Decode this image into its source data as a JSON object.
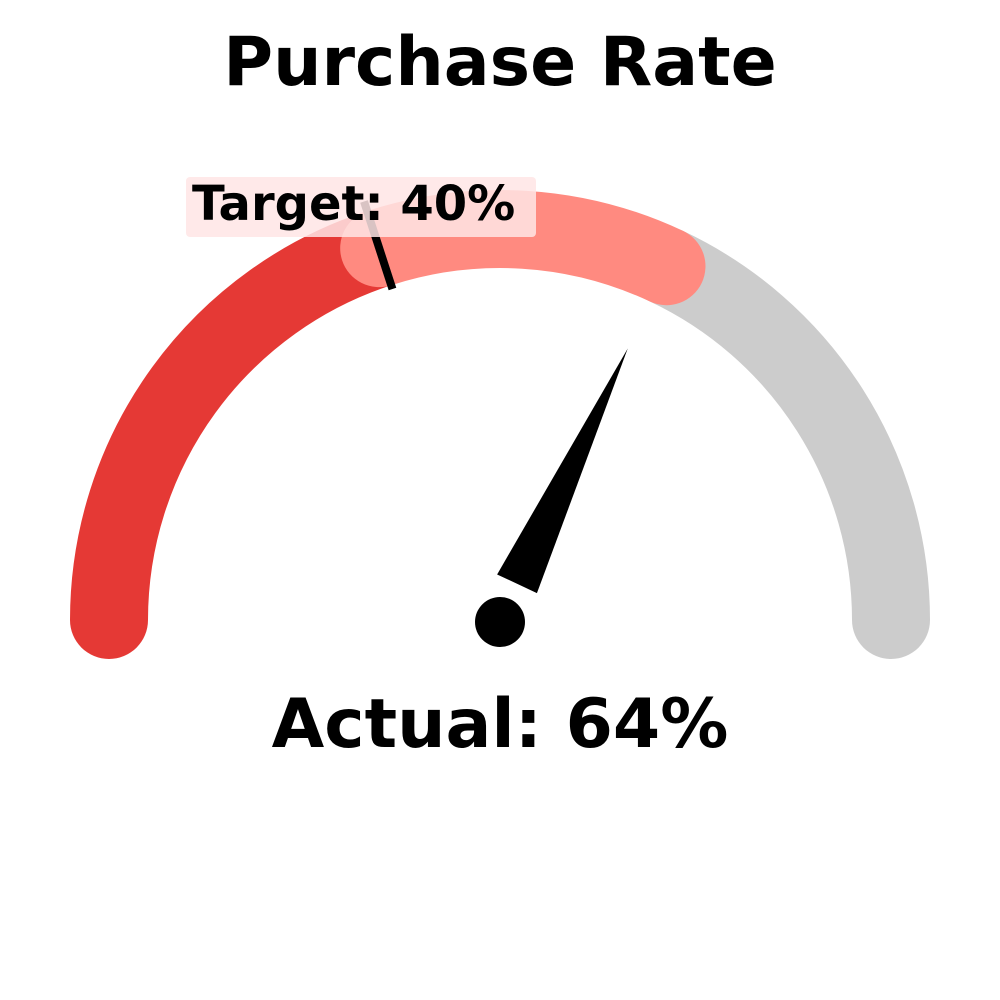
{
  "chart_data": {
    "type": "gauge",
    "title": "Purchase Rate",
    "min": 0,
    "max": 100,
    "value": 64,
    "target": 40,
    "target_label": "Target: 40%",
    "value_label": "Actual: 64%",
    "bands": [
      {
        "from": 0,
        "to": 40,
        "color": "#e53935"
      },
      {
        "from": 40,
        "to": 64,
        "color": "#ff8a80"
      },
      {
        "from": 64,
        "to": 100,
        "color": "#cccccc"
      }
    ],
    "colors": {
      "needle": "#000000",
      "target_marker": "#000000",
      "target_label_background": "#ffe5e5"
    }
  }
}
